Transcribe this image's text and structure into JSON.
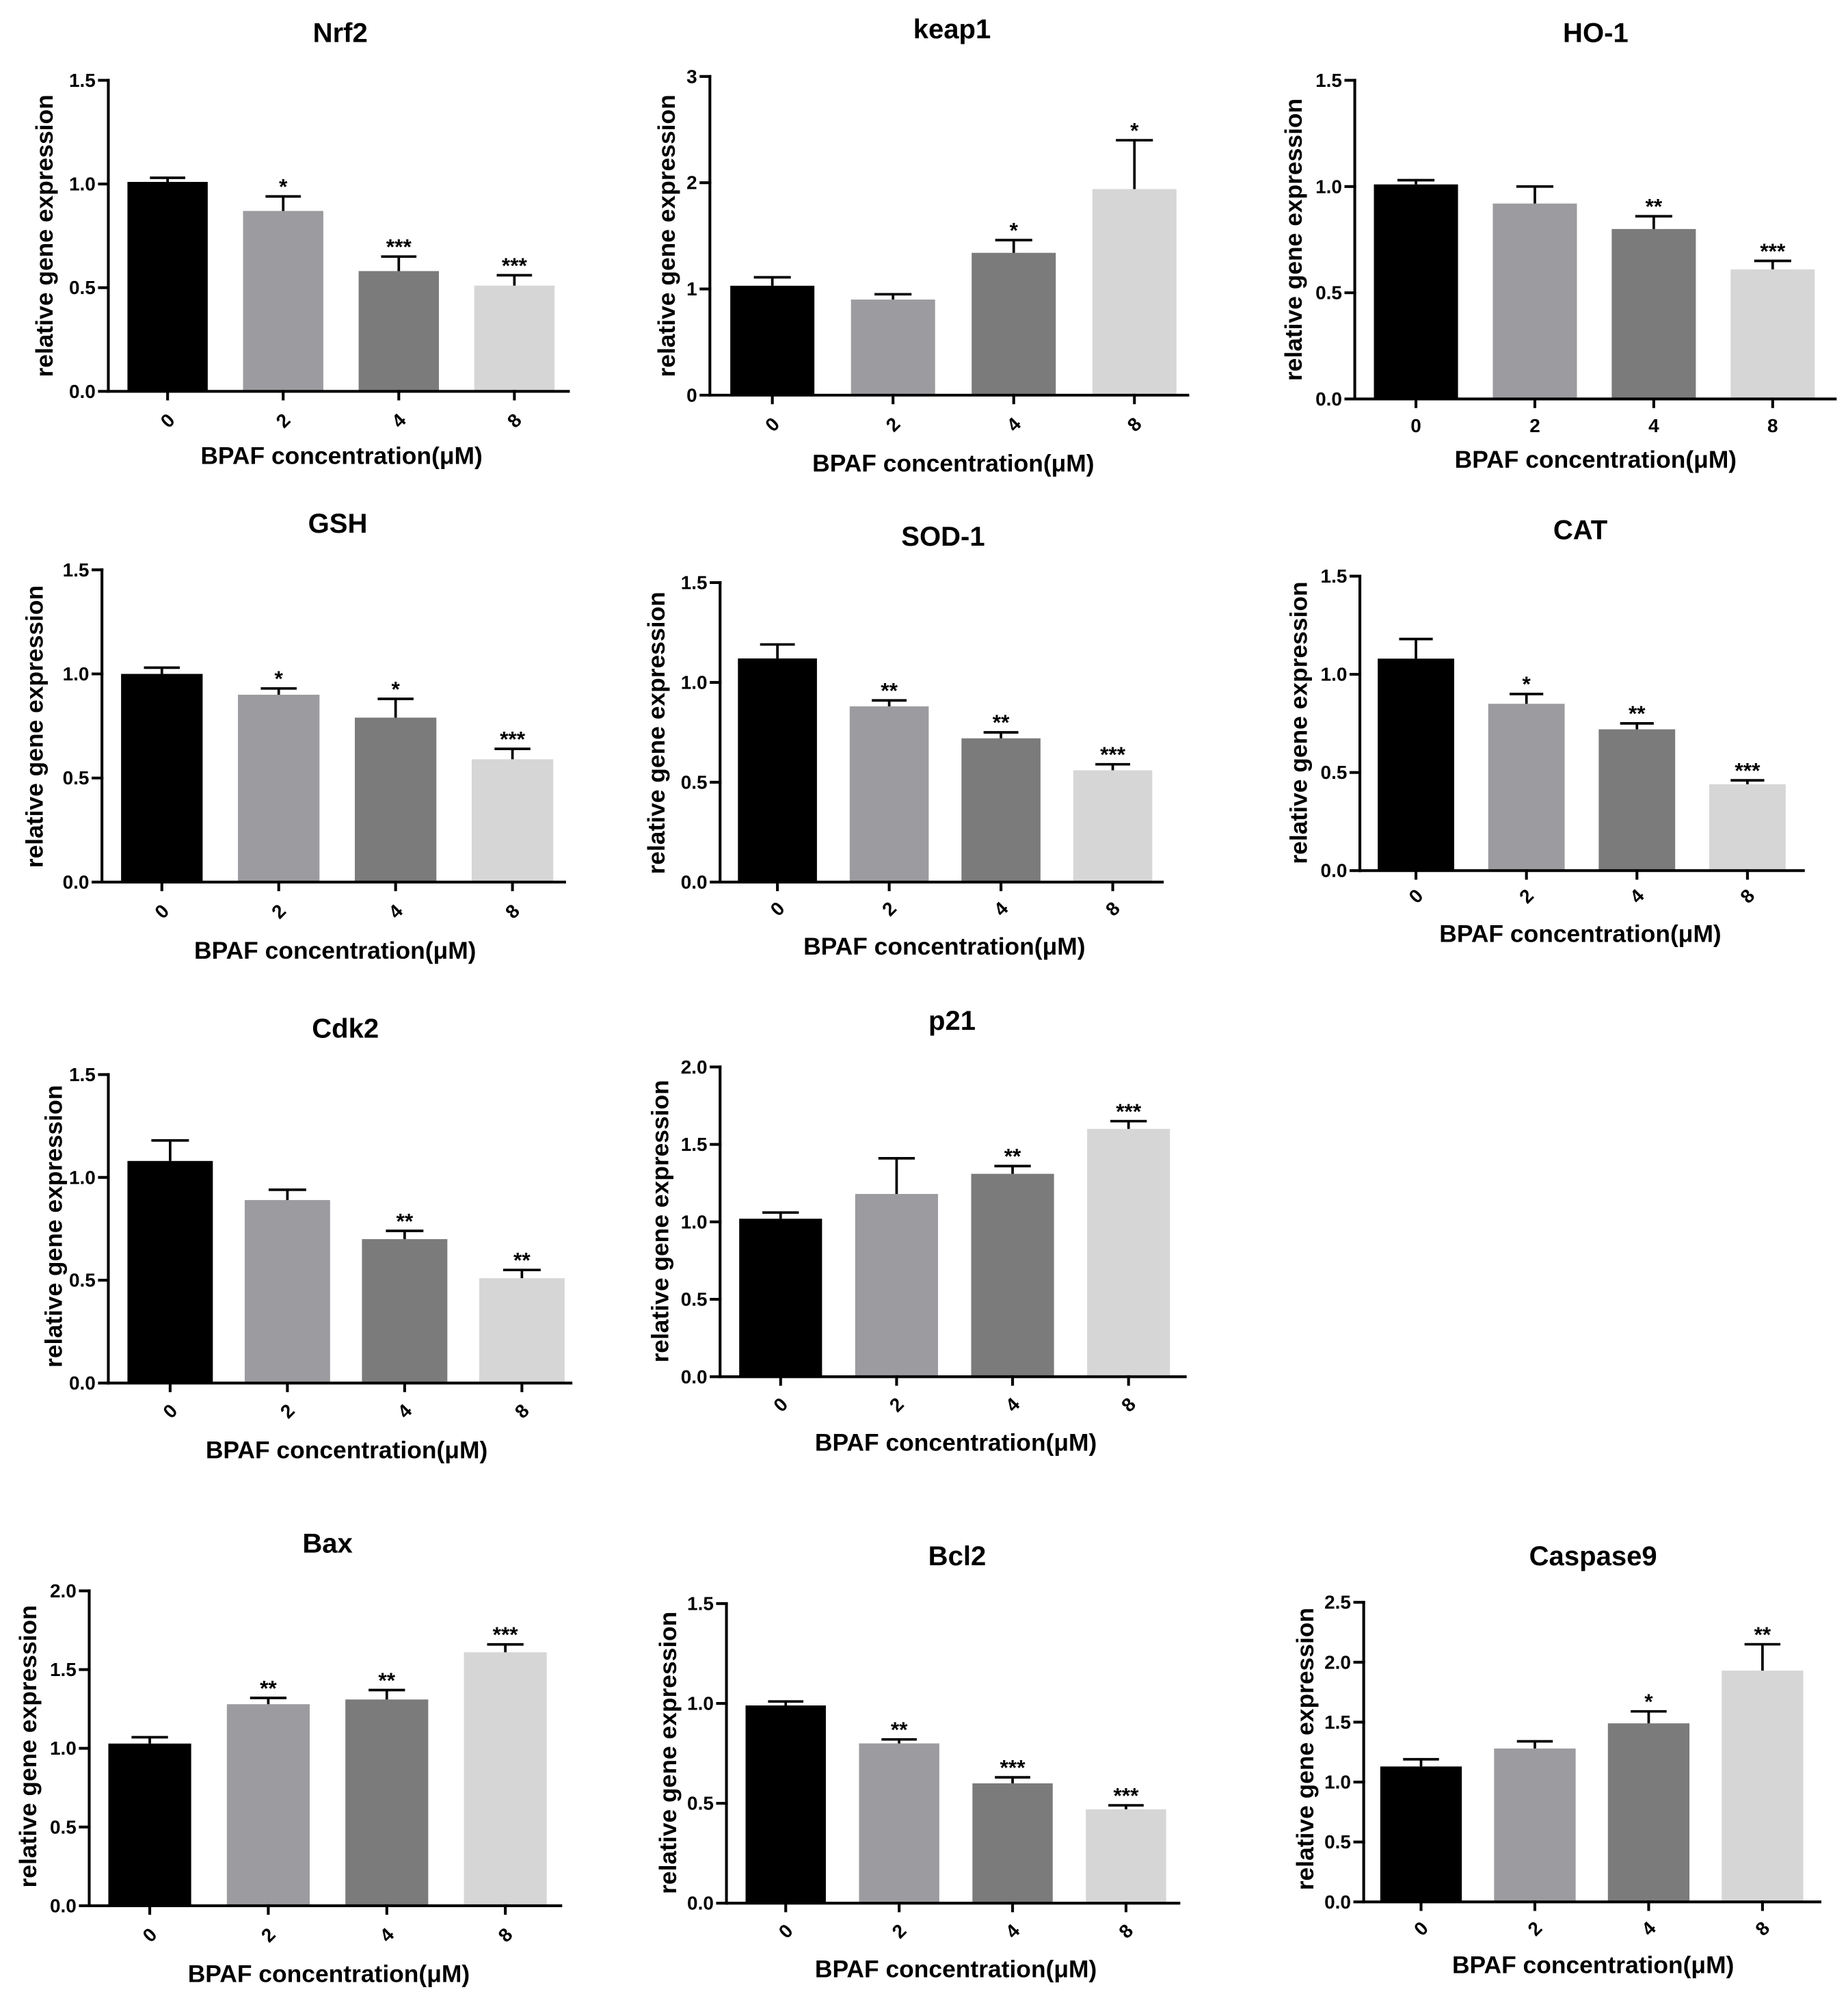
{
  "bar_colors": [
    "#000000",
    "#9c9ca0",
    "#7b7b7b",
    "#d6d6d6"
  ],
  "chart_data": [
    {
      "type": "bar",
      "title": "Nrf2",
      "xlabel": "BPAF concentration(μM)",
      "ylabel": "relative gene expression",
      "categories": [
        "0",
        "2",
        "4",
        "8"
      ],
      "values": [
        1.01,
        0.87,
        0.58,
        0.51
      ],
      "errors": [
        0.02,
        0.07,
        0.07,
        0.05
      ],
      "significance": [
        "",
        "*",
        "***",
        "***"
      ],
      "ylim": [
        0,
        1.5
      ],
      "yticks": [
        0,
        0.5,
        1,
        1.5
      ],
      "ytick_labels": [
        "0.0",
        "0.5",
        "1.0",
        "1.5"
      ]
    },
    {
      "type": "bar",
      "title": "keap1",
      "xlabel": "BPAF concentration(μM)",
      "ylabel": "relative gene expression",
      "categories": [
        "0",
        "2",
        "4",
        "8"
      ],
      "values": [
        1.03,
        0.9,
        1.34,
        1.94
      ],
      "errors": [
        0.08,
        0.05,
        0.12,
        0.46
      ],
      "significance": [
        "",
        "",
        "*",
        "*"
      ],
      "ylim": [
        0,
        3
      ],
      "yticks": [
        0,
        1,
        2,
        3
      ],
      "ytick_labels": [
        "0",
        "1",
        "2",
        "3"
      ]
    },
    {
      "type": "bar",
      "title": "HO-1",
      "xlabel": "BPAF concentration(μM)",
      "ylabel": "relative gene expression",
      "categories": [
        "0",
        "2",
        "4",
        "8"
      ],
      "values": [
        1.01,
        0.92,
        0.8,
        0.61
      ],
      "errors": [
        0.02,
        0.08,
        0.06,
        0.04
      ],
      "significance": [
        "",
        "",
        "**",
        "***"
      ],
      "ylim": [
        0,
        1.5
      ],
      "yticks": [
        0,
        0.5,
        1,
        1.5
      ],
      "ytick_labels": [
        "0.0",
        "0.5",
        "1.0",
        "1.5"
      ]
    },
    {
      "type": "bar",
      "title": "GSH",
      "xlabel": "BPAF concentration(μM)",
      "ylabel": "relative gene expression",
      "categories": [
        "0",
        "2",
        "4",
        "8"
      ],
      "values": [
        1.0,
        0.9,
        0.79,
        0.59
      ],
      "errors": [
        0.03,
        0.03,
        0.09,
        0.05
      ],
      "significance": [
        "",
        "*",
        "*",
        "***"
      ],
      "ylim": [
        0,
        1.5
      ],
      "yticks": [
        0,
        0.5,
        1,
        1.5
      ],
      "ytick_labels": [
        "0.0",
        "0.5",
        "1.0",
        "1.5"
      ]
    },
    {
      "type": "bar",
      "title": "SOD-1",
      "xlabel": "BPAF concentration(μM)",
      "ylabel": "relative gene expression",
      "categories": [
        "0",
        "2",
        "4",
        "8"
      ],
      "values": [
        1.12,
        0.88,
        0.72,
        0.56
      ],
      "errors": [
        0.07,
        0.03,
        0.03,
        0.03
      ],
      "significance": [
        "",
        "**",
        "**",
        "***"
      ],
      "ylim": [
        0,
        1.5
      ],
      "yticks": [
        0,
        0.5,
        1,
        1.5
      ],
      "ytick_labels": [
        "0.0",
        "0.5",
        "1.0",
        "1.5"
      ]
    },
    {
      "type": "bar",
      "title": "CAT",
      "xlabel": "BPAF concentration(μM)",
      "ylabel": "relative gene expression",
      "categories": [
        "0",
        "2",
        "4",
        "8"
      ],
      "values": [
        1.08,
        0.85,
        0.72,
        0.44
      ],
      "errors": [
        0.1,
        0.05,
        0.03,
        0.02
      ],
      "significance": [
        "",
        "*",
        "**",
        "***"
      ],
      "ylim": [
        0,
        1.5
      ],
      "yticks": [
        0,
        0.5,
        1,
        1.5
      ],
      "ytick_labels": [
        "0.0",
        "0.5",
        "1.0",
        "1.5"
      ]
    },
    {
      "type": "bar",
      "title": "Cdk2",
      "xlabel": "BPAF concentration(μM)",
      "ylabel": "relative gene expression",
      "categories": [
        "0",
        "2",
        "4",
        "8"
      ],
      "values": [
        1.08,
        0.89,
        0.7,
        0.51
      ],
      "errors": [
        0.1,
        0.05,
        0.04,
        0.04
      ],
      "significance": [
        "",
        "",
        "**",
        "**"
      ],
      "ylim": [
        0,
        1.5
      ],
      "yticks": [
        0,
        0.5,
        1,
        1.5
      ],
      "ytick_labels": [
        "0.0",
        "0.5",
        "1.0",
        "1.5"
      ]
    },
    {
      "type": "bar",
      "title": "p21",
      "xlabel": "BPAF concentration(μM)",
      "ylabel": "relative gene expression",
      "categories": [
        "0",
        "2",
        "4",
        "8"
      ],
      "values": [
        1.02,
        1.18,
        1.31,
        1.6
      ],
      "errors": [
        0.04,
        0.23,
        0.05,
        0.05
      ],
      "significance": [
        "",
        "",
        "**",
        "***"
      ],
      "ylim": [
        0,
        2
      ],
      "yticks": [
        0,
        0.5,
        1,
        1.5,
        2
      ],
      "ytick_labels": [
        "0.0",
        "0.5",
        "1.0",
        "1.5",
        "2.0"
      ]
    },
    {
      "type": "bar",
      "title": "Bax",
      "xlabel": "BPAF concentration(μM)",
      "ylabel": "relative gene expression",
      "categories": [
        "0",
        "2",
        "4",
        "8"
      ],
      "values": [
        1.03,
        1.28,
        1.31,
        1.61
      ],
      "errors": [
        0.04,
        0.04,
        0.06,
        0.05
      ],
      "significance": [
        "",
        "**",
        "**",
        "***"
      ],
      "ylim": [
        0,
        2
      ],
      "yticks": [
        0,
        0.5,
        1,
        1.5,
        2
      ],
      "ytick_labels": [
        "0.0",
        "0.5",
        "1.0",
        "1.5",
        "2.0"
      ]
    },
    {
      "type": "bar",
      "title": "Bcl2",
      "xlabel": "BPAF concentration(μM)",
      "ylabel": "relative gene expression",
      "categories": [
        "0",
        "2",
        "4",
        "8"
      ],
      "values": [
        0.99,
        0.8,
        0.6,
        0.47
      ],
      "errors": [
        0.02,
        0.02,
        0.03,
        0.02
      ],
      "significance": [
        "",
        "**",
        "***",
        "***"
      ],
      "ylim": [
        0,
        1.5
      ],
      "yticks": [
        0,
        0.5,
        1,
        1.5
      ],
      "ytick_labels": [
        "0.0",
        "0.5",
        "1.0",
        "1.5"
      ]
    },
    {
      "type": "bar",
      "title": "Caspase9",
      "xlabel": "BPAF concentration(μM)",
      "ylabel": "relative gene expression",
      "categories": [
        "0",
        "2",
        "4",
        "8"
      ],
      "values": [
        1.13,
        1.28,
        1.49,
        1.93
      ],
      "errors": [
        0.06,
        0.06,
        0.1,
        0.22
      ],
      "significance": [
        "",
        "",
        "*",
        "**"
      ],
      "ylim": [
        0,
        2.5
      ],
      "yticks": [
        0,
        0.5,
        1,
        1.5,
        2,
        2.5
      ],
      "ytick_labels": [
        "0.0",
        "0.5",
        "1.0",
        "1.5",
        "2.0",
        "2.5"
      ]
    }
  ]
}
